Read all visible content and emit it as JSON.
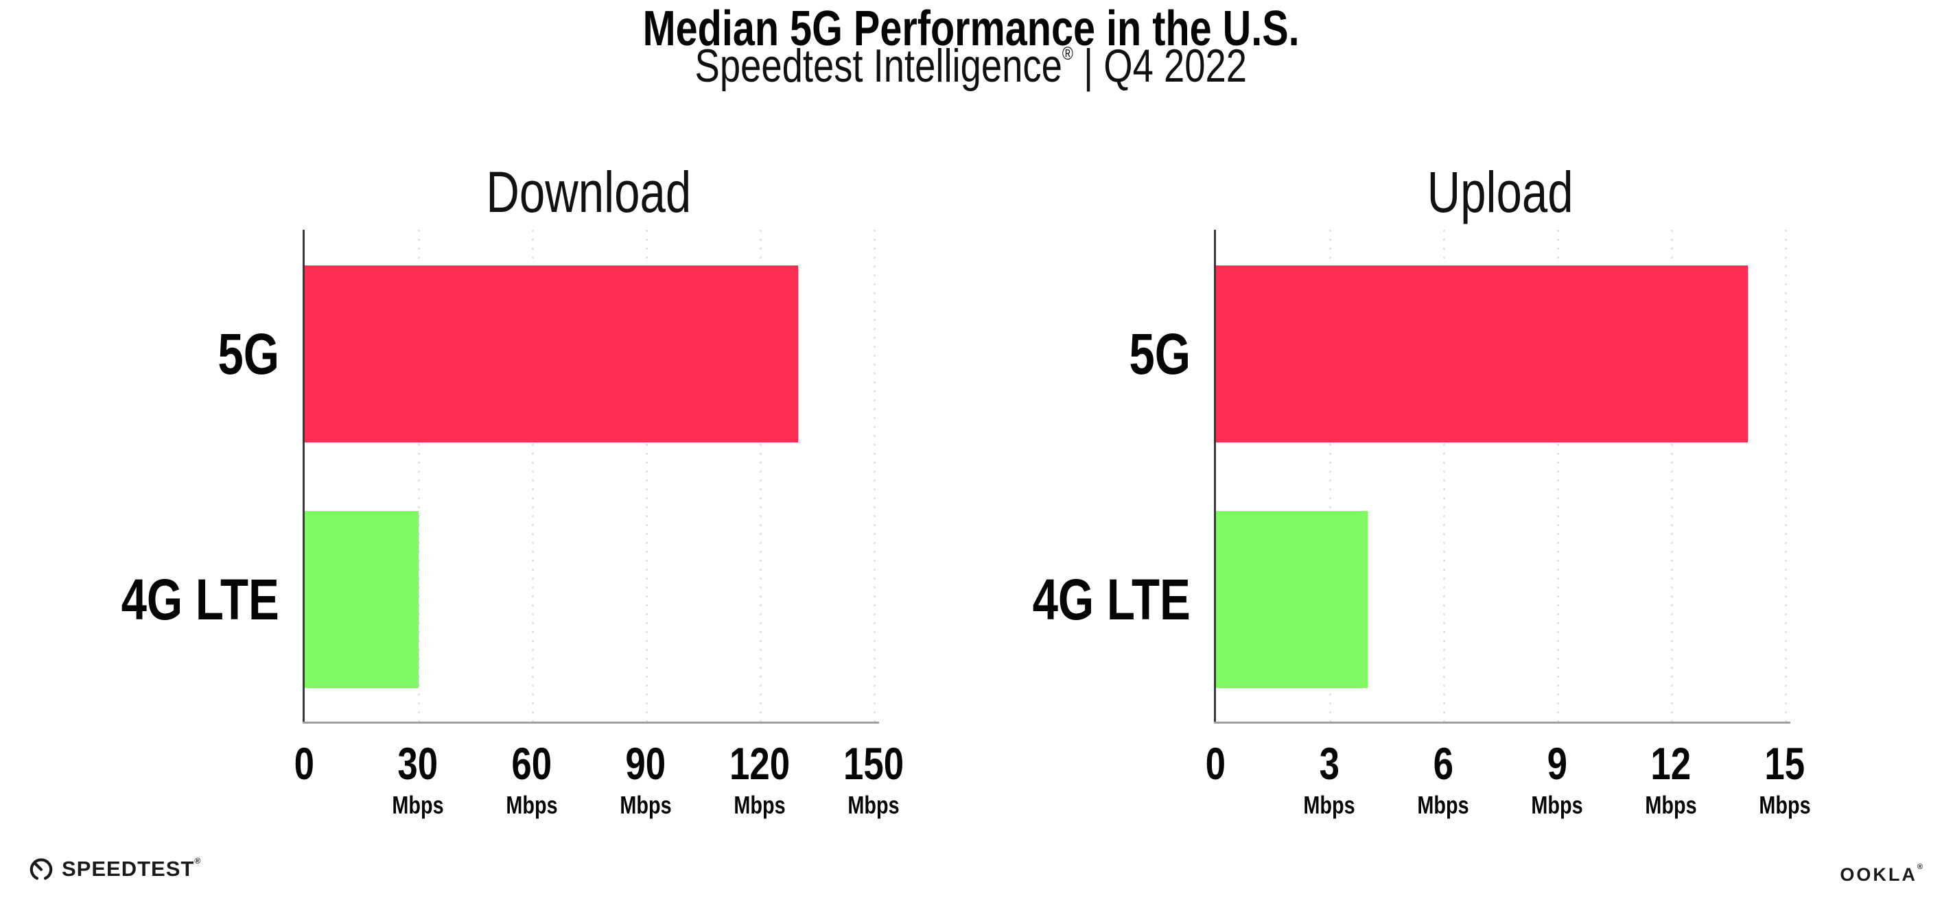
{
  "header": {
    "title": "Median 5G Performance in the U.S.",
    "subtitle_brand": "Speedtest Intelligence",
    "subtitle_reg": "®",
    "subtitle_rest": " | Q4 2022"
  },
  "footer": {
    "speedtest_label": "SPEEDTEST",
    "speedtest_reg": "®",
    "ookla_label": "OOKLA",
    "ookla_reg": "®"
  },
  "colors": {
    "bar_5g": "#FF2E55",
    "bar_4g_lte": "#80FA64",
    "gridline": "#E1E1ED",
    "spine": "#3A3A3C",
    "axis_line": "#9EA0A6",
    "text": "#050505"
  },
  "chart_data": [
    {
      "type": "bar",
      "orientation": "horizontal",
      "title": "Download",
      "categories": [
        "5G",
        "4G LTE"
      ],
      "values": [
        130,
        30
      ],
      "unit": "Mbps",
      "xlim": [
        0,
        150
      ],
      "xticks": [
        0,
        30,
        60,
        90,
        120,
        150
      ],
      "grid": "vertical-dotted",
      "legend": "none",
      "bar_colors": [
        "#FF2E55",
        "#80FA64"
      ]
    },
    {
      "type": "bar",
      "orientation": "horizontal",
      "title": "Upload",
      "categories": [
        "5G",
        "4G LTE"
      ],
      "values": [
        14,
        4
      ],
      "unit": "Mbps",
      "xlim": [
        0,
        15
      ],
      "xticks": [
        0,
        3,
        6,
        9,
        12,
        15
      ],
      "grid": "vertical-dotted",
      "legend": "none",
      "bar_colors": [
        "#FF2E55",
        "#80FA64"
      ]
    }
  ]
}
